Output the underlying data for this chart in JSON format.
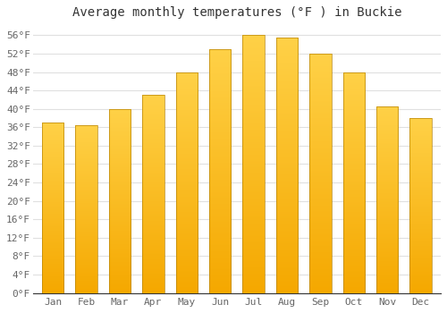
{
  "title": "Average monthly temperatures (°F ) in Buckie",
  "months": [
    "Jan",
    "Feb",
    "Mar",
    "Apr",
    "May",
    "Jun",
    "Jul",
    "Aug",
    "Sep",
    "Oct",
    "Nov",
    "Dec"
  ],
  "values": [
    37,
    36.5,
    40,
    43,
    48,
    53,
    56,
    55.5,
    52,
    48,
    40.5,
    38
  ],
  "bar_color_top": "#FFD147",
  "bar_color_bottom": "#F5A800",
  "bar_edge_color": "#B8860B",
  "background_color": "#ffffff",
  "grid_color": "#e0e0e0",
  "ylim": [
    0,
    58
  ],
  "title_fontsize": 10,
  "tick_fontsize": 8,
  "ylabel_values": [
    0,
    4,
    8,
    12,
    16,
    20,
    24,
    28,
    32,
    36,
    40,
    44,
    48,
    52,
    56
  ]
}
